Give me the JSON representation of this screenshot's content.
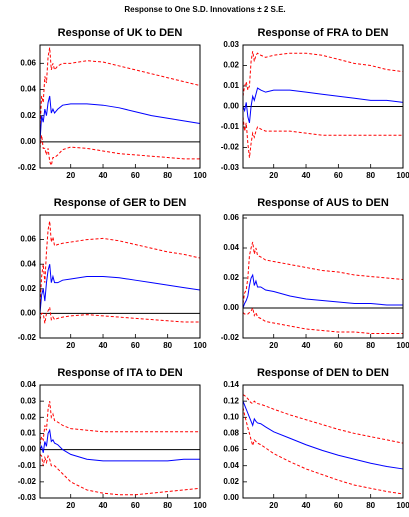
{
  "title": "Response to One S.D. Innovations ± 2 S.E.",
  "chart_data": [
    {
      "type": "line",
      "title": "Response of UK to DEN",
      "x": [
        1,
        2,
        3,
        4,
        5,
        6,
        7,
        8,
        9,
        10,
        12,
        15,
        20,
        30,
        40,
        50,
        60,
        70,
        80,
        90,
        100
      ],
      "series": [
        {
          "color": "#0000ff",
          "dash": false,
          "values": [
            0.0,
            0.02,
            0.015,
            0.025,
            0.02,
            0.03,
            0.035,
            0.022,
            0.025,
            0.022,
            0.025,
            0.028,
            0.029,
            0.029,
            0.028,
            0.026,
            0.023,
            0.02,
            0.018,
            0.016,
            0.014
          ]
        },
        {
          "color": "#ff0000",
          "dash": true,
          "values": [
            0.01,
            0.035,
            0.03,
            0.05,
            0.045,
            0.065,
            0.072,
            0.055,
            0.06,
            0.055,
            0.058,
            0.06,
            0.06,
            0.062,
            0.061,
            0.058,
            0.055,
            0.052,
            0.049,
            0.046,
            0.043
          ]
        },
        {
          "color": "#ff0000",
          "dash": true,
          "values": [
            -0.005,
            0.005,
            -0.005,
            -0.005,
            -0.01,
            -0.005,
            -0.015,
            -0.018,
            -0.012,
            -0.012,
            -0.01,
            -0.006,
            -0.004,
            -0.005,
            -0.007,
            -0.009,
            -0.01,
            -0.011,
            -0.012,
            -0.013,
            -0.013
          ]
        }
      ],
      "xlim": [
        1,
        100
      ],
      "xticks": [
        20,
        40,
        60,
        80,
        100
      ],
      "ylim": [
        -0.02,
        0.074
      ],
      "yticks": [
        -0.02,
        {
          "value": 0,
          "label": "0.00"
        },
        0.02,
        0.04,
        0.06
      ],
      "zero_line": true
    },
    {
      "type": "line",
      "title": "Response of FRA to DEN",
      "x": [
        1,
        2,
        3,
        4,
        5,
        6,
        7,
        8,
        9,
        10,
        12,
        15,
        20,
        30,
        40,
        50,
        60,
        70,
        80,
        90,
        100
      ],
      "series": [
        {
          "color": "#0000ff",
          "dash": false,
          "values": [
            0.0,
            -0.002,
            0.002,
            -0.005,
            -0.008,
            0.0,
            0.005,
            0.003,
            0.006,
            0.009,
            0.008,
            0.007,
            0.008,
            0.008,
            0.007,
            0.006,
            0.005,
            0.004,
            0.003,
            0.003,
            0.002
          ]
        },
        {
          "color": "#ff0000",
          "dash": true,
          "values": [
            0.005,
            0.01,
            0.012,
            0.008,
            0.01,
            0.022,
            0.027,
            0.022,
            0.025,
            0.026,
            0.025,
            0.024,
            0.025,
            0.026,
            0.026,
            0.025,
            0.023,
            0.021,
            0.02,
            0.018,
            0.017
          ]
        },
        {
          "color": "#ff0000",
          "dash": true,
          "values": [
            -0.005,
            -0.012,
            -0.008,
            -0.018,
            -0.025,
            -0.018,
            -0.013,
            -0.015,
            -0.012,
            -0.01,
            -0.011,
            -0.012,
            -0.012,
            -0.012,
            -0.013,
            -0.014,
            -0.014,
            -0.014,
            -0.014,
            -0.014,
            -0.014
          ]
        }
      ],
      "xlim": [
        1,
        100
      ],
      "xticks": [
        20,
        40,
        60,
        80,
        100
      ],
      "ylim": [
        -0.03,
        0.03
      ],
      "yticks": [
        -0.03,
        -0.02,
        -0.01,
        {
          "value": 0,
          "label": "0.00"
        },
        0.01,
        0.02,
        0.03
      ],
      "zero_line": true
    },
    {
      "type": "line",
      "title": "Response of GER to DEN",
      "x": [
        1,
        2,
        3,
        4,
        5,
        6,
        7,
        8,
        9,
        10,
        12,
        15,
        20,
        30,
        40,
        50,
        60,
        70,
        80,
        90,
        100
      ],
      "series": [
        {
          "color": "#0000ff",
          "dash": false,
          "values": [
            0.0,
            0.015,
            0.02,
            0.01,
            0.025,
            0.035,
            0.04,
            0.025,
            0.03,
            0.025,
            0.025,
            0.027,
            0.028,
            0.03,
            0.03,
            0.029,
            0.027,
            0.025,
            0.023,
            0.021,
            0.019
          ]
        },
        {
          "color": "#ff0000",
          "dash": true,
          "values": [
            0.005,
            0.03,
            0.04,
            0.025,
            0.05,
            0.068,
            0.075,
            0.058,
            0.062,
            0.055,
            0.056,
            0.057,
            0.058,
            0.06,
            0.061,
            0.059,
            0.056,
            0.053,
            0.05,
            0.048,
            0.045
          ]
        },
        {
          "color": "#ff0000",
          "dash": true,
          "values": [
            -0.005,
            0.0,
            0.0,
            -0.008,
            0.0,
            0.002,
            0.005,
            -0.005,
            -0.003,
            -0.005,
            -0.004,
            -0.003,
            -0.002,
            -0.001,
            -0.002,
            -0.003,
            -0.004,
            -0.005,
            -0.006,
            -0.007,
            -0.007
          ]
        }
      ],
      "xlim": [
        1,
        100
      ],
      "xticks": [
        20,
        40,
        60,
        80,
        100
      ],
      "ylim": [
        -0.02,
        0.08
      ],
      "yticks": [
        -0.02,
        {
          "value": 0,
          "label": "0.00"
        },
        0.02,
        0.04,
        0.06
      ],
      "zero_line": true
    },
    {
      "type": "line",
      "title": "Response of AUS to DEN",
      "x": [
        1,
        2,
        3,
        4,
        5,
        6,
        7,
        8,
        9,
        10,
        12,
        15,
        20,
        30,
        40,
        50,
        60,
        70,
        80,
        90,
        100
      ],
      "series": [
        {
          "color": "#0000ff",
          "dash": false,
          "values": [
            0.0,
            0.003,
            0.005,
            0.008,
            0.015,
            0.02,
            0.022,
            0.015,
            0.018,
            0.014,
            0.014,
            0.012,
            0.011,
            0.008,
            0.006,
            0.005,
            0.004,
            0.003,
            0.003,
            0.002,
            0.002
          ]
        },
        {
          "color": "#ff0000",
          "dash": true,
          "values": [
            0.003,
            0.01,
            0.012,
            0.02,
            0.035,
            0.04,
            0.044,
            0.036,
            0.04,
            0.035,
            0.034,
            0.032,
            0.031,
            0.029,
            0.027,
            0.025,
            0.024,
            0.022,
            0.021,
            0.02,
            0.019
          ]
        },
        {
          "color": "#ff0000",
          "dash": true,
          "values": [
            -0.003,
            -0.004,
            -0.004,
            -0.004,
            -0.003,
            -0.002,
            0.0,
            -0.005,
            -0.003,
            -0.006,
            -0.007,
            -0.009,
            -0.01,
            -0.012,
            -0.014,
            -0.015,
            -0.016,
            -0.016,
            -0.017,
            -0.017,
            -0.017
          ]
        }
      ],
      "xlim": [
        1,
        100
      ],
      "xticks": [
        20,
        40,
        60,
        80,
        100
      ],
      "ylim": [
        -0.02,
        0.062
      ],
      "yticks": [
        -0.02,
        {
          "value": 0,
          "label": "0.00"
        },
        0.02,
        0.04,
        0.06
      ],
      "zero_line": true
    },
    {
      "type": "line",
      "title": "Response of ITA to DEN",
      "x": [
        1,
        2,
        3,
        4,
        5,
        6,
        7,
        8,
        9,
        10,
        12,
        15,
        20,
        30,
        40,
        50,
        60,
        70,
        80,
        90,
        100
      ],
      "series": [
        {
          "color": "#0000ff",
          "dash": false,
          "values": [
            0.0,
            0.002,
            -0.002,
            0.005,
            0.002,
            0.01,
            0.012,
            0.005,
            0.006,
            0.004,
            0.003,
            0.0,
            -0.003,
            -0.006,
            -0.007,
            -0.007,
            -0.007,
            -0.007,
            -0.007,
            -0.006,
            -0.006
          ]
        },
        {
          "color": "#ff0000",
          "dash": true,
          "values": [
            0.003,
            0.008,
            0.006,
            0.015,
            0.012,
            0.025,
            0.03,
            0.02,
            0.022,
            0.018,
            0.017,
            0.015,
            0.013,
            0.012,
            0.011,
            0.011,
            0.011,
            0.011,
            0.011,
            0.011,
            0.011
          ]
        },
        {
          "color": "#ff0000",
          "dash": true,
          "values": [
            -0.003,
            -0.004,
            -0.01,
            -0.005,
            -0.008,
            -0.004,
            -0.006,
            -0.01,
            -0.01,
            -0.01,
            -0.012,
            -0.015,
            -0.02,
            -0.025,
            -0.027,
            -0.028,
            -0.028,
            -0.027,
            -0.026,
            -0.025,
            -0.024
          ]
        }
      ],
      "xlim": [
        1,
        100
      ],
      "xticks": [
        20,
        40,
        60,
        80,
        100
      ],
      "ylim": [
        -0.03,
        0.04
      ],
      "yticks": [
        -0.03,
        -0.02,
        -0.01,
        {
          "value": 0,
          "label": "0.00"
        },
        0.01,
        0.02,
        0.03,
        0.04
      ],
      "zero_line": true
    },
    {
      "type": "line",
      "title": "Response of DEN to DEN",
      "x": [
        1,
        2,
        3,
        4,
        5,
        6,
        7,
        8,
        9,
        10,
        12,
        15,
        20,
        30,
        40,
        50,
        60,
        70,
        80,
        90,
        100
      ],
      "series": [
        {
          "color": "#0000ff",
          "dash": false,
          "values": [
            0.12,
            0.115,
            0.11,
            0.105,
            0.1,
            0.095,
            0.09,
            0.098,
            0.095,
            0.093,
            0.092,
            0.088,
            0.082,
            0.074,
            0.066,
            0.059,
            0.053,
            0.048,
            0.043,
            0.039,
            0.036
          ]
        },
        {
          "color": "#ff0000",
          "dash": true,
          "values": [
            0.128,
            0.127,
            0.125,
            0.123,
            0.12,
            0.118,
            0.117,
            0.12,
            0.118,
            0.117,
            0.116,
            0.114,
            0.11,
            0.103,
            0.097,
            0.091,
            0.085,
            0.08,
            0.076,
            0.072,
            0.068
          ]
        },
        {
          "color": "#ff0000",
          "dash": true,
          "values": [
            0.112,
            0.103,
            0.095,
            0.087,
            0.08,
            0.072,
            0.065,
            0.072,
            0.07,
            0.068,
            0.066,
            0.062,
            0.055,
            0.045,
            0.036,
            0.029,
            0.022,
            0.016,
            0.012,
            0.008,
            0.005
          ]
        }
      ],
      "xlim": [
        1,
        100
      ],
      "xticks": [
        20,
        40,
        60,
        80,
        100
      ],
      "ylim": [
        0,
        0.14
      ],
      "yticks": [
        {
          "value": 0,
          "label": "0.00"
        },
        0.02,
        0.04,
        0.06,
        0.08,
        {
          "value": 0.1,
          "label": "0.10"
        },
        0.12,
        0.14
      ],
      "zero_line": true
    }
  ]
}
